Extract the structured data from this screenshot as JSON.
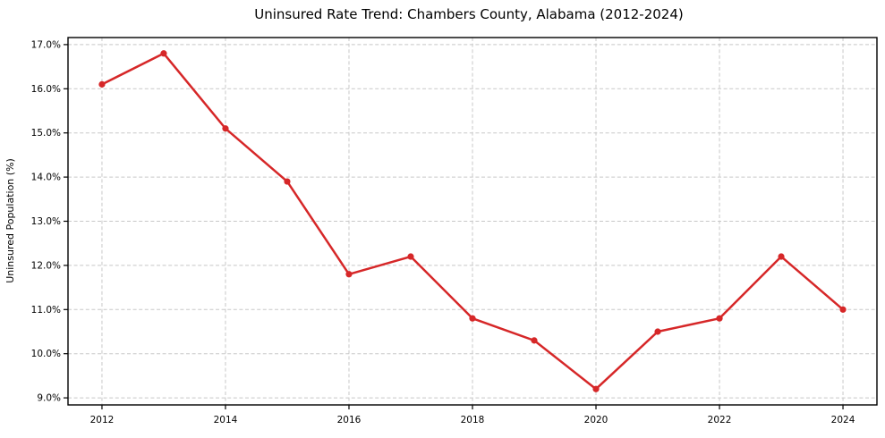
{
  "chart_data": {
    "type": "line",
    "title": "Uninsured Rate Trend: Chambers County, Alabama (2012-2024)",
    "ylabel": "Uninsured Population (%)",
    "xlabel": "",
    "x": [
      2012,
      2013,
      2014,
      2015,
      2016,
      2017,
      2018,
      2019,
      2020,
      2021,
      2022,
      2023,
      2024
    ],
    "values": [
      16.1,
      16.8,
      15.1,
      13.9,
      11.8,
      12.2,
      10.8,
      10.3,
      9.2,
      10.5,
      10.8,
      12.2,
      11.0
    ],
    "xticks": {
      "values": [
        2012,
        2014,
        2016,
        2018,
        2020,
        2022,
        2024
      ],
      "labels": [
        "2012",
        "2014",
        "2016",
        "2018",
        "2020",
        "2022",
        "2024"
      ]
    },
    "yticks": {
      "values": [
        9.0,
        10.0,
        11.0,
        12.0,
        13.0,
        14.0,
        15.0,
        16.0,
        17.0
      ],
      "labels": [
        "9.0%",
        "10.0%",
        "11.0%",
        "12.0%",
        "13.0%",
        "14.0%",
        "15.0%",
        "16.0%",
        "17.0%"
      ]
    },
    "xlim": [
      2011.45,
      2024.55
    ],
    "ylim": [
      8.84,
      17.16
    ],
    "grid": true,
    "grid_style": "dashed",
    "legend": "none",
    "colors": {
      "line": "#d62728",
      "marker": "#d62728",
      "grid": "#c8c8c8",
      "spine": "#000000",
      "text": "#000000",
      "background": "#ffffff"
    }
  }
}
